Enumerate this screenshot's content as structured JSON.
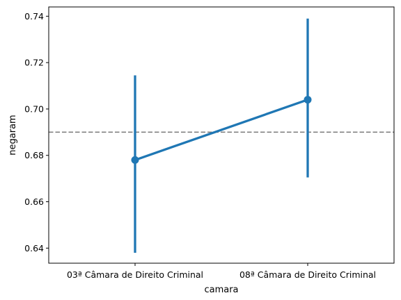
{
  "chart_data": {
    "type": "line",
    "title": "",
    "xlabel": "camara",
    "ylabel": "negaram",
    "categories": [
      "03ª Câmara de Direito Criminal",
      "08ª Câmara de Direito Criminal"
    ],
    "series": [
      {
        "name": "negaram",
        "values": [
          0.678,
          0.704
        ],
        "ci_low": [
          0.638,
          0.6705
        ],
        "ci_high": [
          0.7145,
          0.739
        ],
        "color": "#1f77b4"
      }
    ],
    "reference_line": {
      "y": 0.69,
      "color": "#808080",
      "style": "dashed"
    },
    "ylim": [
      0.6335,
      0.744
    ],
    "yticks": [
      0.64,
      0.66,
      0.68,
      0.7,
      0.72,
      0.74
    ],
    "ytick_labels": [
      "0.64",
      "0.66",
      "0.68",
      "0.70",
      "0.72",
      "0.74"
    ],
    "grid": false,
    "legend": "none"
  }
}
